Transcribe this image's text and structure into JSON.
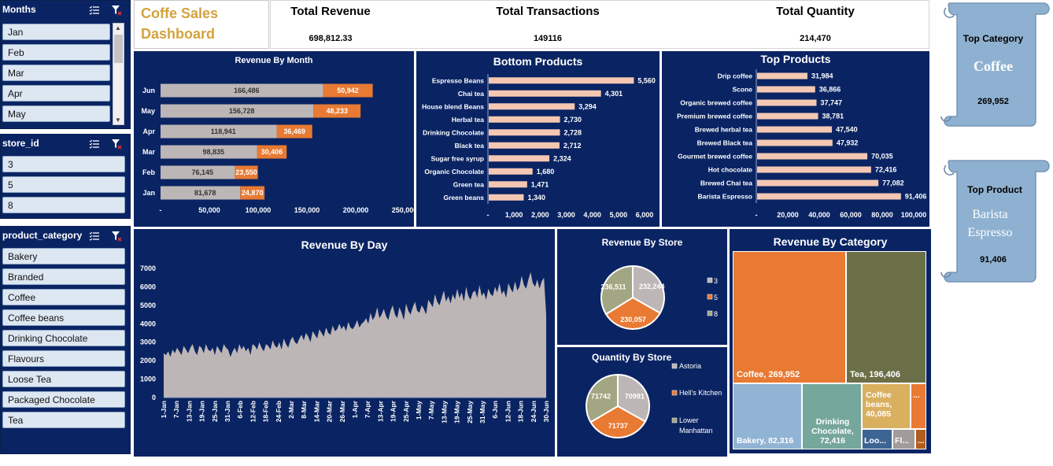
{
  "title": "Coffe Sales Dashboard",
  "title_line1": "Coffe Sales",
  "title_line2": "Dashboard",
  "kpis": {
    "revenue_label": "Total Revenue",
    "revenue_value": "698,812.33",
    "transactions_label": "Total Transactions",
    "transactions_value": "149116",
    "quantity_label": "Total Quantity",
    "quantity_value": "214,470"
  },
  "slicers": {
    "months": {
      "label": "Months",
      "items": [
        "Jan",
        "Feb",
        "Mar",
        "Apr",
        "May"
      ]
    },
    "store": {
      "label": "store_id",
      "items": [
        "3",
        "5",
        "8"
      ]
    },
    "category": {
      "label": "product_category",
      "items": [
        "Bakery",
        "Branded",
        "Coffee",
        "Coffee beans",
        "Drinking Chocolate",
        "Flavours",
        "Loose Tea",
        "Packaged Chocolate",
        "Tea"
      ]
    }
  },
  "scrolls": {
    "top_category": {
      "label": "Top Category",
      "name": "Coffee",
      "value": "269,952"
    },
    "top_product": {
      "label": "Top Product",
      "name_line1": "Barista",
      "name_line2": "Espresso",
      "value": "91,406"
    }
  },
  "colors": {
    "navy": "#0a2463",
    "grey": "#bdb6b6",
    "orange": "#e87a33",
    "peach": "#f4c7b3"
  },
  "chart_data": [
    {
      "id": "revenue_by_month",
      "type": "bar",
      "title": "Revenue By Month",
      "categories": [
        "Jun",
        "May",
        "Apr",
        "Mar",
        "Feb",
        "Jan"
      ],
      "series": [
        {
          "values": [
            166486,
            156728,
            118941,
            98835,
            76145,
            81678
          ],
          "labels": [
            "166,486",
            "156,728",
            "118,941",
            "98,835",
            "76,145",
            "81,678"
          ]
        },
        {
          "values": [
            50942,
            48233,
            36469,
            30406,
            23550,
            24870
          ],
          "labels": [
            "50,942",
            "48,233",
            "36,469",
            "30,406",
            "23,550",
            "24,870"
          ]
        }
      ],
      "xticks": [
        "-",
        "50,000",
        "100,000",
        "150,000",
        "200,000",
        "250,000"
      ],
      "xlim": [
        0,
        250000
      ]
    },
    {
      "id": "bottom_products",
      "type": "bar",
      "title": "Bottom Products",
      "categories": [
        "Espresso Beans",
        "Chai tea",
        "House blend Beans",
        "Herbal tea",
        "Drinking Chocolate",
        "Black tea",
        "Sugar free syrup",
        "Organic Chocolate",
        "Green tea",
        "Green beans"
      ],
      "values": [
        5560,
        4301,
        3294,
        2730,
        2728,
        2712,
        2324,
        1680,
        1471,
        1340
      ],
      "labels": [
        "5,560",
        "4,301",
        "3,294",
        "2,730",
        "2,728",
        "2,712",
        "2,324",
        "1,680",
        "1,471",
        "1,340"
      ],
      "xticks": [
        "-",
        "1,000",
        "2,000",
        "3,000",
        "4,000",
        "5,000",
        "6,000"
      ],
      "xlim": [
        0,
        6000
      ]
    },
    {
      "id": "top_products",
      "type": "bar",
      "title": "Top Products",
      "categories": [
        "Drip coffee",
        "Scone",
        "Organic brewed coffee",
        "Premium brewed coffee",
        "Brewed herbal tea",
        "Brewed Black tea",
        "Gourmet brewed coffee",
        "Hot chocolate",
        "Brewed Chai tea",
        "Barista Espresso"
      ],
      "values": [
        31984,
        36866,
        37747,
        38781,
        47540,
        47932,
        70035,
        72416,
        77082,
        91406
      ],
      "labels": [
        "31,984",
        "36,866",
        "37,747",
        "38,781",
        "47,540",
        "47,932",
        "70,035",
        "72,416",
        "77,082",
        "91,406"
      ],
      "xticks": [
        "-",
        "20,000",
        "40,000",
        "60,000",
        "80,000",
        "100,000"
      ],
      "xlim": [
        0,
        100000
      ]
    },
    {
      "id": "revenue_by_day",
      "type": "area",
      "title": "Revenue By Day",
      "ylim": [
        0,
        7000
      ],
      "yticks": [
        "0",
        "1000",
        "2000",
        "3000",
        "4000",
        "5000",
        "6000",
        "7000"
      ],
      "xticks": [
        "1-Jan",
        "7-Jan",
        "13-Jan",
        "19-Jan",
        "25-Jan",
        "31-Jan",
        "6-Feb",
        "12-Feb",
        "18-Feb",
        "24-Feb",
        "2-Mar",
        "8-Mar",
        "14-Mar",
        "20-Mar",
        "26-Mar",
        "1-Apr",
        "7-Apr",
        "13-Apr",
        "19-Apr",
        "25-Apr",
        "1-May",
        "7-May",
        "13-May",
        "19-May",
        "25-May",
        "31-May",
        "6-Jun",
        "12-Jun",
        "18-Jun",
        "24-Jun",
        "30-Jun"
      ],
      "values": [
        2400,
        2300,
        2500,
        2200,
        2600,
        2400,
        2700,
        2500,
        2300,
        2800,
        2600,
        2400,
        2700,
        2900,
        2500,
        2300,
        2800,
        2700,
        2400,
        2900,
        2600,
        2500,
        2700,
        2300,
        2800,
        2600,
        2400,
        2900,
        2700,
        2600,
        2200,
        2500,
        2700,
        2400,
        2900,
        2600,
        2800,
        2500,
        2700,
        2300,
        2900,
        2800,
        2600,
        3000,
        2700,
        2500,
        2900,
        2800,
        2600,
        3100,
        2800,
        2700,
        3000,
        2600,
        3200,
        2900,
        2700,
        3100,
        3300,
        3000,
        2900,
        3200,
        3400,
        3100,
        3500,
        3300,
        3000,
        3600,
        3400,
        3200,
        3700,
        3500,
        3300,
        3800,
        3500,
        3400,
        3900,
        3600,
        3700,
        4000,
        3700,
        3900,
        3600,
        4100,
        3800,
        3700,
        3900,
        4200,
        3800,
        4000,
        4100,
        4300,
        4000,
        4600,
        4200,
        4400,
        4900,
        4300,
        4500,
        4800,
        4400,
        4200,
        4700,
        5000,
        4500,
        4300,
        4900,
        4600,
        4200,
        5100,
        4700,
        4500,
        4900,
        5200,
        4700,
        4600,
        5000,
        4800,
        4500,
        5300,
        5100,
        4900,
        5600,
        5200,
        5000,
        5400,
        5800,
        5200,
        5500,
        5100,
        5600,
        5300,
        5900,
        5400,
        5700,
        5200,
        6000,
        5500,
        5300,
        5700,
        5800,
        5400,
        6100,
        5500,
        5700,
        5300,
        5900,
        5600,
        5500,
        6000,
        5700,
        6200,
        5600,
        5800,
        5400,
        6200,
        5900,
        5700,
        6300,
        5800,
        6000,
        6600,
        6100,
        5900,
        6400,
        6800,
        6200,
        6000,
        6400,
        5900,
        6300,
        6500,
        4500
      ]
    },
    {
      "id": "revenue_by_store",
      "type": "pie",
      "title": "Revenue By Store",
      "categories": [
        "3",
        "5",
        "8"
      ],
      "values": [
        232244,
        230057,
        236511
      ],
      "labels": [
        "232,244",
        "230,057",
        "236,511"
      ],
      "colors": [
        "#bdb6b6",
        "#e87a33",
        "#a3a682"
      ]
    },
    {
      "id": "quantity_by_store",
      "type": "pie",
      "title": "Quantity By Store",
      "categories": [
        "Astoria",
        "Hell's Kitchen",
        "Lower Manhattan"
      ],
      "values": [
        70991,
        71737,
        71742
      ],
      "labels": [
        "70991",
        "71737",
        "71742"
      ],
      "colors": [
        "#bdb6b6",
        "#e87a33",
        "#a3a682"
      ]
    },
    {
      "id": "revenue_by_category",
      "type": "treemap",
      "title": "Revenue By Category",
      "categories": [
        "Coffee",
        "Tea",
        "Bakery",
        "Drinking Chocolate",
        "Coffee beans",
        "Branded",
        "Loose Tea",
        "Flavours",
        "Packaged Chocolate"
      ],
      "values": [
        269952,
        196406,
        82316,
        72416,
        40085,
        null,
        null,
        null,
        null
      ],
      "labels": [
        "Coffee,  269,952",
        "Tea,  196,406",
        "Bakery,  82,316",
        "Drinking Chocolate, 72,416",
        "Coffee beans, 40,085",
        "...",
        "Loo...",
        "Fl...",
        "..."
      ]
    }
  ]
}
